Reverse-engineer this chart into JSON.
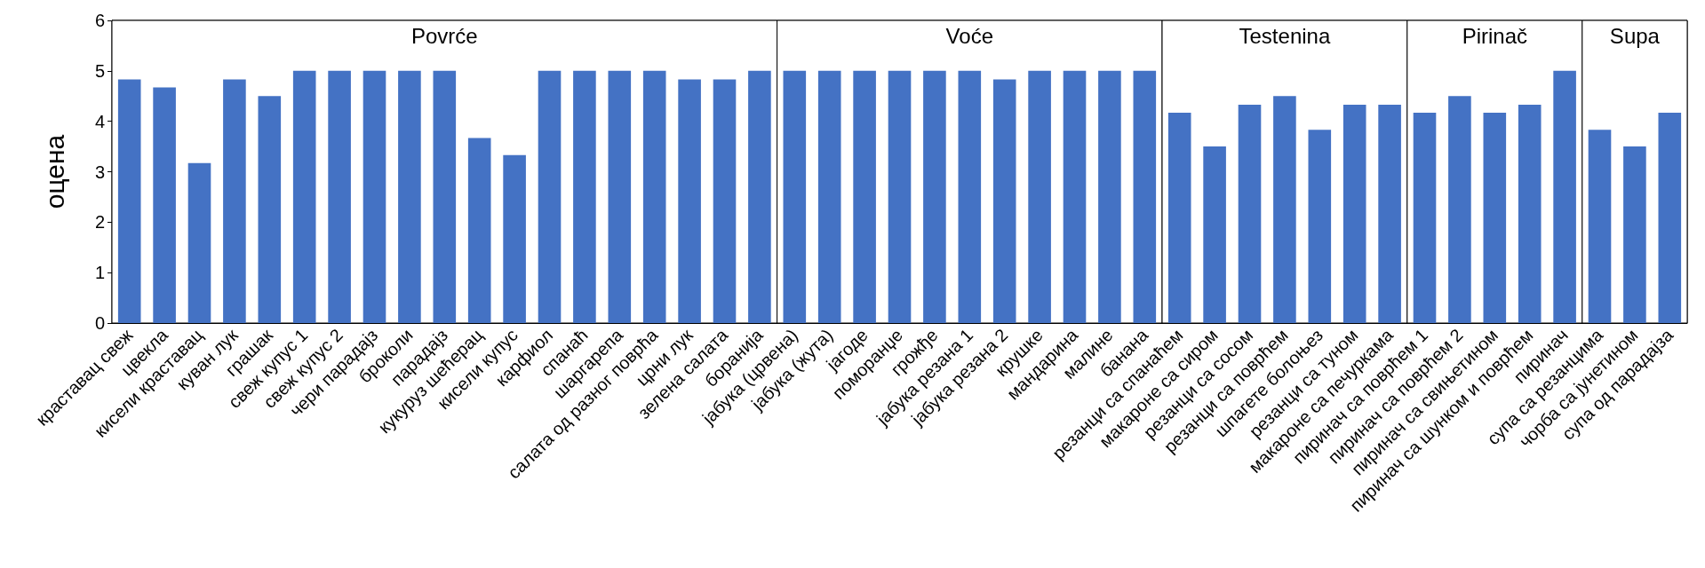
{
  "chart_data": {
    "type": "bar",
    "ylabel": "оцена",
    "categories": [
      "краставац свеж",
      "цвекла",
      "кисели краставац",
      "куван лук",
      "грашак",
      "свеж купус 1",
      "свеж купус 2",
      "чери парадајз",
      "броколи",
      "парадајз",
      "кукуруз шећерац",
      "кисели купус",
      "карфиол",
      "спанаћ",
      "шаргарепа",
      "салата од разног поврћа",
      "црни лук",
      "зелена салата",
      "боранија",
      "јабука (црвена)",
      "јабука (жута)",
      "јагоде",
      "поморанџе",
      "грожђе",
      "јабука резана 1",
      "јабука резана 2",
      "крушке",
      "мандарина",
      "малине",
      "банана",
      "резанци са спанаћем",
      "макароне са сиром",
      "резанци са сосом",
      "резанци са поврћем",
      "шпагете болоњез",
      "резанци са туном",
      "макароне са печуркама",
      "пиринач са поврћем 1",
      "пиринач са поврћем 2",
      "пиринач са свињетином",
      "пиринач са шунком и поврћем",
      "пиринач",
      "супа са резанцима",
      "чорба са јунетином",
      "супа од парадајза"
    ],
    "values": [
      4.83,
      4.67,
      3.17,
      4.83,
      4.5,
      5,
      5,
      5,
      5,
      5,
      3.67,
      3.33,
      5,
      5,
      5,
      5,
      4.83,
      4.83,
      5,
      5,
      5,
      5,
      5,
      5,
      5,
      4.83,
      5,
      5,
      5,
      5,
      4.17,
      3.5,
      4.33,
      4.5,
      3.83,
      4.33,
      4.33,
      4.17,
      4.5,
      4.17,
      4.33,
      5,
      3.83,
      3.5,
      4.17
    ],
    "color": "#4472c4",
    "ylim": [
      0,
      6
    ],
    "yticks": [
      0,
      1,
      2,
      3,
      4,
      5,
      6
    ],
    "grid": false,
    "bands": [
      {
        "axis": "x",
        "from": "краставац свеж",
        "to": "боранија",
        "label": "Povrće",
        "color": "#ffffff"
      },
      {
        "axis": "x",
        "from": "јабука (црвена)",
        "to": "банана",
        "label": "Voće",
        "color": "#ffffff"
      },
      {
        "axis": "x",
        "from": "резанци са спанаћем",
        "to": "макароне са печуркама",
        "label": "Testenina",
        "color": "#ffffff"
      },
      {
        "axis": "x",
        "from": "пиринач са поврћем 1",
        "to": "пиринач",
        "label": "Pirinač",
        "color": "#ffffff"
      },
      {
        "axis": "x",
        "from": "супа са резанцима",
        "to": "супа од парадајза",
        "label": "Supa",
        "color": "#ffffff"
      }
    ]
  }
}
